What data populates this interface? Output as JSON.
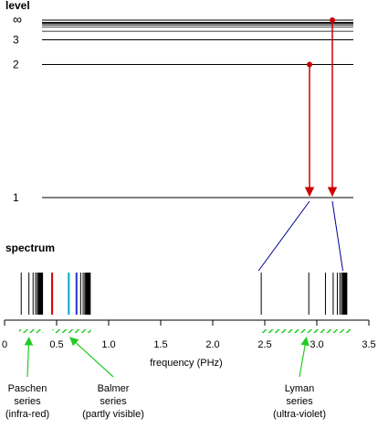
{
  "levels_heading": "level",
  "spectrum_heading": "spectrum",
  "colors": {
    "level_line": "#000000",
    "transition": "#cc0000",
    "projection": "#000099",
    "series_bar": "#22cc22",
    "red_line": "#cc0000",
    "cyan_line": "#00aacc",
    "blue_line": "#2233cc"
  },
  "levels": [
    {
      "label": "1",
      "n": 1
    },
    {
      "label": "2",
      "n": 2
    },
    {
      "label": "3",
      "n": 3
    },
    {
      "label": "∞",
      "n": "inf"
    }
  ],
  "axis": {
    "label": "frequency (PHz)",
    "min": 0,
    "max": 3.5,
    "ticks": [
      {
        "value": 0,
        "label": "0"
      },
      {
        "value": 0.5,
        "label": "0.5"
      },
      {
        "value": 1.0,
        "label": "1.0"
      },
      {
        "value": 1.5,
        "label": "1.5"
      },
      {
        "value": 2.0,
        "label": "2.0"
      },
      {
        "value": 2.5,
        "label": "2.5"
      },
      {
        "value": 3.0,
        "label": "3.0"
      },
      {
        "value": 3.5,
        "label": "3.5"
      }
    ]
  },
  "transitions_shown": [
    {
      "from": 2,
      "to": 1,
      "frequency": 2.47
    },
    {
      "from": "inf",
      "to": 1,
      "frequency": 3.29
    }
  ],
  "spectral_lines": {
    "paschen": [
      0.16,
      0.234,
      0.274,
      0.298,
      0.314,
      0.325,
      0.333,
      0.339,
      0.343,
      0.346,
      0.348,
      0.35,
      0.352,
      0.353,
      0.354,
      0.355,
      0.356,
      0.357,
      0.358,
      0.359,
      0.36,
      0.362,
      0.364,
      0.365
    ],
    "balmer": [
      {
        "f": 0.457,
        "color": "red"
      },
      {
        "f": 0.617,
        "color": "cyan"
      },
      {
        "f": 0.691,
        "color": "blue"
      },
      {
        "f": 0.731
      },
      {
        "f": 0.755
      },
      {
        "f": 0.771
      },
      {
        "f": 0.781
      },
      {
        "f": 0.789
      },
      {
        "f": 0.795
      },
      {
        "f": 0.8
      },
      {
        "f": 0.804
      },
      {
        "f": 0.808
      },
      {
        "f": 0.812
      },
      {
        "f": 0.816
      },
      {
        "f": 0.82
      },
      {
        "f": 0.823
      }
    ],
    "lyman": [
      2.466,
      2.923,
      3.083,
      3.157,
      3.197,
      3.221,
      3.237,
      3.248,
      3.256,
      3.262,
      3.266,
      3.27,
      3.274,
      3.278,
      3.282,
      3.288
    ]
  },
  "series": [
    {
      "id": "paschen",
      "name": "Paschen",
      "word": "series",
      "note": "(infra-red)",
      "range": [
        0.14,
        0.37
      ],
      "arrow_at": 0.235
    },
    {
      "id": "balmer",
      "name": "Balmer",
      "word": "series",
      "note": "(partly visible)",
      "range": [
        0.46,
        0.83
      ],
      "arrow_at": 0.63
    },
    {
      "id": "lyman",
      "name": "Lyman",
      "word": "series",
      "note": "(ultra-violet)",
      "range": [
        2.47,
        3.33
      ],
      "arrow_at": 2.9
    }
  ]
}
